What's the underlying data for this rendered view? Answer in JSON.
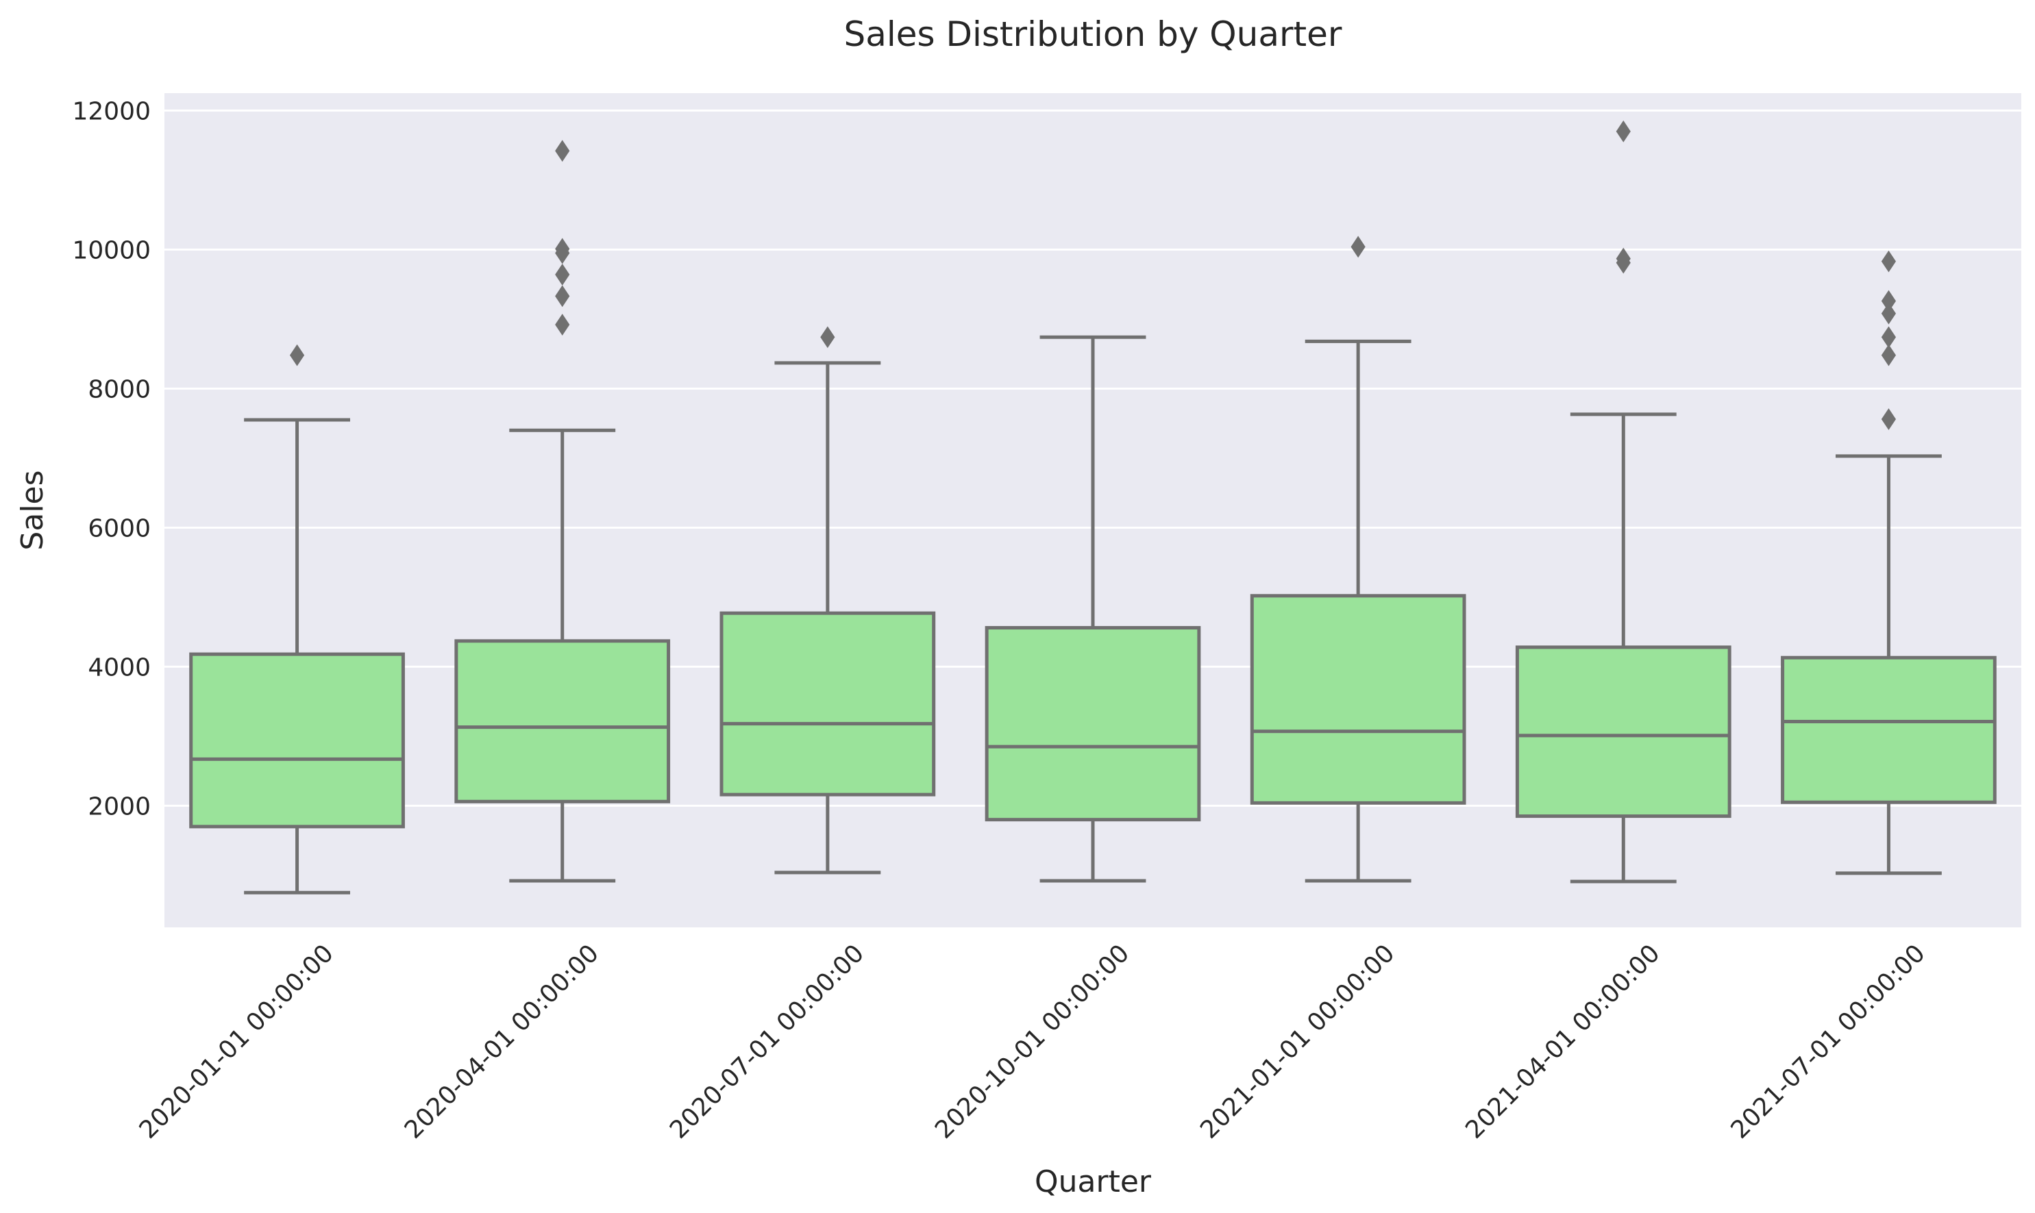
{
  "chart_data": {
    "type": "box",
    "title": "Sales Distribution by Quarter",
    "xlabel": "Quarter",
    "ylabel": "Sales",
    "ylim": [
      250,
      12250
    ],
    "yticks": [
      2000,
      4000,
      6000,
      8000,
      10000,
      12000
    ],
    "yticks_labels": [
      "2000",
      "4000",
      "6000",
      "8000",
      "10000",
      "12000"
    ],
    "grid": true,
    "categories": [
      "2020-01-01 00:00:00",
      "2020-04-01 00:00:00",
      "2020-07-01 00:00:00",
      "2020-10-01 00:00:00",
      "2021-01-01 00:00:00",
      "2021-04-01 00:00:00",
      "2021-07-01 00:00:00"
    ],
    "boxes": [
      {
        "category": "2020-01-01 00:00:00",
        "whisker_low": 750,
        "q1": 1700,
        "median": 2670,
        "q3": 4180,
        "whisker_high": 7550,
        "outliers": [
          8480
        ]
      },
      {
        "category": "2020-04-01 00:00:00",
        "whisker_low": 920,
        "q1": 2060,
        "median": 3130,
        "q3": 4370,
        "whisker_high": 7400,
        "outliers": [
          8920,
          9330,
          9640,
          9950,
          10010,
          11420
        ]
      },
      {
        "category": "2020-07-01 00:00:00",
        "whisker_low": 1040,
        "q1": 2160,
        "median": 3180,
        "q3": 4770,
        "whisker_high": 8370,
        "outliers": [
          8740
        ]
      },
      {
        "category": "2020-10-01 00:00:00",
        "whisker_low": 920,
        "q1": 1800,
        "median": 2850,
        "q3": 4560,
        "whisker_high": 8740,
        "outliers": []
      },
      {
        "category": "2021-01-01 00:00:00",
        "whisker_low": 920,
        "q1": 2040,
        "median": 3070,
        "q3": 5020,
        "whisker_high": 8680,
        "outliers": [
          10040
        ]
      },
      {
        "category": "2021-04-01 00:00:00",
        "whisker_low": 910,
        "q1": 1850,
        "median": 3010,
        "q3": 4280,
        "whisker_high": 7630,
        "outliers": [
          9810,
          9870,
          11700
        ]
      },
      {
        "category": "2021-07-01 00:00:00",
        "whisker_low": 1030,
        "q1": 2050,
        "median": 3210,
        "q3": 4130,
        "whisker_high": 7030,
        "outliers": [
          7560,
          8480,
          8740,
          9080,
          9260,
          9830
        ]
      }
    ],
    "colors": {
      "box_fill": "#9AE39A",
      "line": "#707070",
      "plot_background": "#EAEAF2",
      "grid": "#FFFFFF",
      "text": "#262626"
    }
  }
}
